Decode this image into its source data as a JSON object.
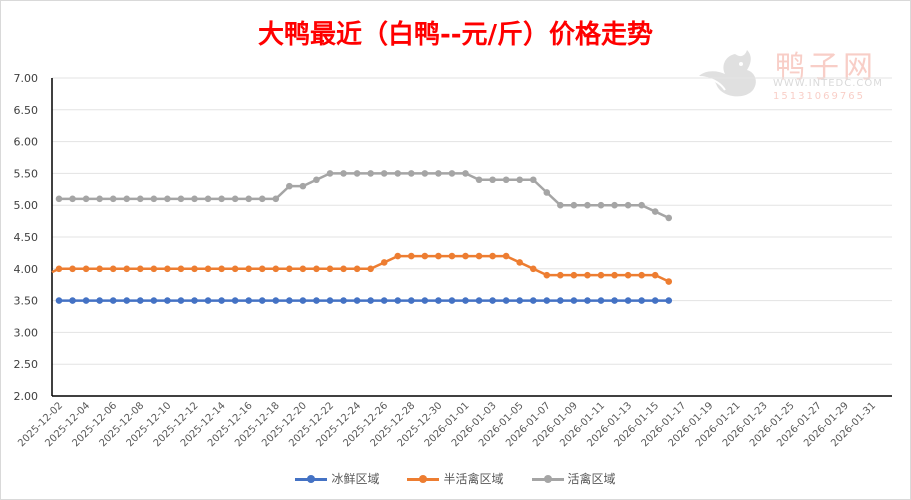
{
  "title": "大鸭最近（白鸭--元/斤）价格走势",
  "watermark": {
    "brand": "鸭子网",
    "url": "WWW.INTEDC.COM",
    "phone": "15131069765"
  },
  "legend": [
    {
      "label": "冰鲜区域",
      "color": "#4472c4"
    },
    {
      "label": "半活禽区域",
      "color": "#ed7d31"
    },
    {
      "label": "活禽区域",
      "color": "#a5a5a5"
    }
  ],
  "chart_data": {
    "type": "line",
    "title": "大鸭最近（白鸭--元/斤）价格走势",
    "xlabel": "",
    "ylabel": "",
    "ylim": [
      2.0,
      7.0
    ],
    "yticks": [
      "7.00",
      "6.50",
      "6.00",
      "5.50",
      "5.00",
      "4.50",
      "4.00",
      "3.50",
      "3.00",
      "2.50",
      "2.00"
    ],
    "grid": true,
    "legend_position": "bottom",
    "x_tick_labels": [
      "2025-12-02",
      "2025-12-04",
      "2025-12-06",
      "2025-12-08",
      "2025-12-10",
      "2025-12-12",
      "2025-12-14",
      "2025-12-16",
      "2025-12-18",
      "2025-12-20",
      "2025-12-22",
      "2025-12-24",
      "2025-12-26",
      "2025-12-28",
      "2025-12-30",
      "2026-01-01",
      "2026-01-03",
      "2026-01-05",
      "2026-01-07",
      "2026-01-09",
      "2026-01-11",
      "2026-01-13",
      "2026-01-15",
      "2026-01-17",
      "2026-01-19",
      "2026-01-21",
      "2026-01-23",
      "2026-01-25",
      "2026-01-27",
      "2026-01-29",
      "2026-01-31"
    ],
    "x_range": [
      "2025-12-02",
      "2026-01-31"
    ],
    "x": [
      "2025-12-02",
      "2025-12-03",
      "2025-12-04",
      "2025-12-05",
      "2025-12-06",
      "2025-12-07",
      "2025-12-08",
      "2025-12-09",
      "2025-12-10",
      "2025-12-11",
      "2025-12-12",
      "2025-12-13",
      "2025-12-14",
      "2025-12-15",
      "2025-12-16",
      "2025-12-17",
      "2025-12-18",
      "2025-12-19",
      "2025-12-20",
      "2025-12-21",
      "2025-12-22",
      "2025-12-23",
      "2025-12-24",
      "2025-12-25",
      "2025-12-26",
      "2025-12-27",
      "2025-12-28",
      "2025-12-29",
      "2025-12-30",
      "2025-12-31",
      "2026-01-01",
      "2026-01-02",
      "2026-01-03",
      "2026-01-04",
      "2026-01-05",
      "2026-01-06",
      "2026-01-07",
      "2026-01-08",
      "2026-01-09",
      "2026-01-10",
      "2026-01-11",
      "2026-01-12",
      "2026-01-13",
      "2026-01-14",
      "2026-01-15",
      "2026-01-16"
    ],
    "series": [
      {
        "name": "冰鲜区域",
        "color": "#4472c4",
        "values": [
          3.5,
          3.5,
          3.5,
          3.5,
          3.5,
          3.5,
          3.5,
          3.5,
          3.5,
          3.5,
          3.5,
          3.5,
          3.5,
          3.5,
          3.5,
          3.5,
          3.5,
          3.5,
          3.5,
          3.5,
          3.5,
          3.5,
          3.5,
          3.5,
          3.5,
          3.5,
          3.5,
          3.5,
          3.5,
          3.5,
          3.5,
          3.5,
          3.5,
          3.5,
          3.5,
          3.5,
          3.5,
          3.5,
          3.5,
          3.5,
          3.5,
          3.5,
          3.5,
          3.5,
          3.5,
          3.5
        ]
      },
      {
        "name": "半活禽区域",
        "color": "#ed7d31",
        "prior_value": 3.9,
        "values": [
          4.0,
          4.0,
          4.0,
          4.0,
          4.0,
          4.0,
          4.0,
          4.0,
          4.0,
          4.0,
          4.0,
          4.0,
          4.0,
          4.0,
          4.0,
          4.0,
          4.0,
          4.0,
          4.0,
          4.0,
          4.0,
          4.0,
          4.0,
          4.0,
          4.1,
          4.2,
          4.2,
          4.2,
          4.2,
          4.2,
          4.2,
          4.2,
          4.2,
          4.2,
          4.1,
          4.0,
          3.9,
          3.9,
          3.9,
          3.9,
          3.9,
          3.9,
          3.9,
          3.9,
          3.9,
          3.8
        ]
      },
      {
        "name": "活禽区域",
        "color": "#a5a5a5",
        "values": [
          5.1,
          5.1,
          5.1,
          5.1,
          5.1,
          5.1,
          5.1,
          5.1,
          5.1,
          5.1,
          5.1,
          5.1,
          5.1,
          5.1,
          5.1,
          5.1,
          5.1,
          5.3,
          5.3,
          5.4,
          5.5,
          5.5,
          5.5,
          5.5,
          5.5,
          5.5,
          5.5,
          5.5,
          5.5,
          5.5,
          5.5,
          5.4,
          5.4,
          5.4,
          5.4,
          5.4,
          5.2,
          5.0,
          5.0,
          5.0,
          5.0,
          5.0,
          5.0,
          5.0,
          4.9,
          4.8
        ]
      }
    ]
  }
}
